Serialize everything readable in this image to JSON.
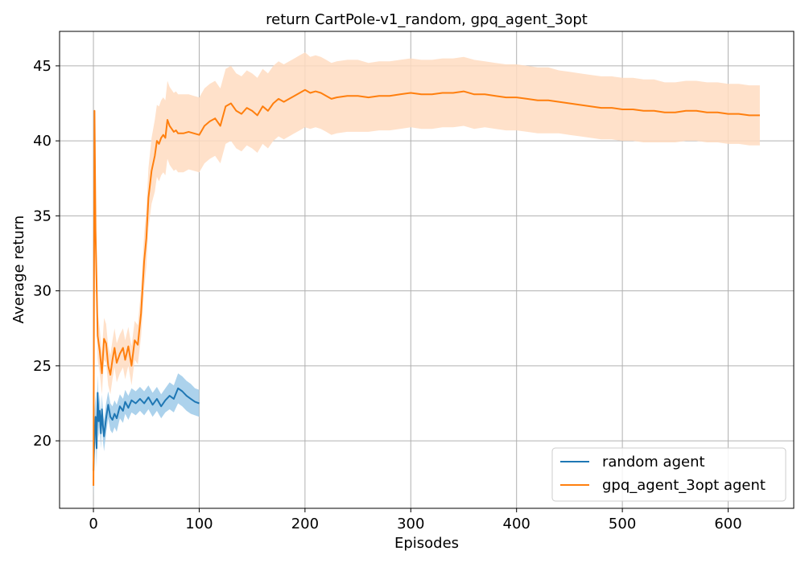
{
  "chart_data": {
    "type": "line",
    "title": "return CartPole-v1_random, gpq_agent_3opt",
    "xlabel": "Episodes",
    "ylabel": "Average return",
    "xlim": [
      -32,
      662
    ],
    "ylim": [
      15.5,
      47.3
    ],
    "xticks": [
      0,
      100,
      200,
      300,
      400,
      500,
      600
    ],
    "yticks": [
      20,
      25,
      30,
      35,
      40,
      45
    ],
    "grid": true,
    "legend_position": "lower-right",
    "series": [
      {
        "name": "random agent",
        "color": "#1f77b4",
        "band_color": "#9ecae9",
        "x": [
          0,
          1,
          2,
          3,
          4,
          5,
          6,
          7,
          8,
          9,
          10,
          12,
          14,
          16,
          18,
          20,
          22,
          25,
          28,
          30,
          33,
          36,
          40,
          44,
          48,
          52,
          56,
          60,
          64,
          68,
          72,
          76,
          80,
          84,
          88,
          92,
          96,
          100
        ],
        "y": [
          18.0,
          20.5,
          21.6,
          19.5,
          23.2,
          21.3,
          22.0,
          20.5,
          22.1,
          21.0,
          20.3,
          21.5,
          22.4,
          21.6,
          21.4,
          21.8,
          21.5,
          22.3,
          22.0,
          22.6,
          22.2,
          22.7,
          22.5,
          22.8,
          22.5,
          22.9,
          22.4,
          22.8,
          22.3,
          22.7,
          23.0,
          22.8,
          23.5,
          23.3,
          23.0,
          22.8,
          22.6,
          22.5
        ],
        "band": [
          1.7,
          1.5,
          1.5,
          1.3,
          1.2,
          1.1,
          1.1,
          1.0,
          1.0,
          1.0,
          1.0,
          1.0,
          0.9,
          0.9,
          0.9,
          0.9,
          0.9,
          0.8,
          0.8,
          0.8,
          0.8,
          0.8,
          0.8,
          0.8,
          0.8,
          0.8,
          0.8,
          0.8,
          0.8,
          0.8,
          0.9,
          0.9,
          1.0,
          1.0,
          1.0,
          1.0,
          0.9,
          0.9
        ]
      },
      {
        "name": "gpq_agent_3opt agent",
        "color": "#ff7f0e",
        "band_color": "#ffdcc1",
        "x": [
          0,
          1,
          2,
          4,
          6,
          8,
          10,
          12,
          14,
          16,
          18,
          20,
          22,
          25,
          28,
          30,
          33,
          36,
          39,
          42,
          45,
          48,
          50,
          52,
          55,
          58,
          60,
          62,
          64,
          66,
          68,
          70,
          72,
          74,
          76,
          78,
          80,
          85,
          90,
          95,
          100,
          105,
          110,
          115,
          120,
          125,
          130,
          135,
          140,
          145,
          150,
          155,
          160,
          165,
          170,
          175,
          180,
          185,
          190,
          195,
          200,
          205,
          210,
          215,
          220,
          225,
          230,
          240,
          250,
          260,
          270,
          280,
          290,
          300,
          310,
          320,
          330,
          340,
          350,
          360,
          370,
          380,
          390,
          400,
          410,
          420,
          430,
          440,
          450,
          460,
          470,
          480,
          490,
          500,
          510,
          520,
          530,
          540,
          550,
          560,
          570,
          580,
          590,
          600,
          610,
          620,
          630
        ],
        "y": [
          17.0,
          42.0,
          34.0,
          27.0,
          26.0,
          24.5,
          26.8,
          26.5,
          25.0,
          24.4,
          25.4,
          26.2,
          25.2,
          25.8,
          26.2,
          25.4,
          26.3,
          25.0,
          26.7,
          26.4,
          28.5,
          32.0,
          33.5,
          36.2,
          38.0,
          39.0,
          40.0,
          39.8,
          40.2,
          40.4,
          40.2,
          41.4,
          41.0,
          40.8,
          40.6,
          40.7,
          40.5,
          40.5,
          40.6,
          40.5,
          40.4,
          41.0,
          41.3,
          41.5,
          41.0,
          42.3,
          42.5,
          42.0,
          41.8,
          42.2,
          42.0,
          41.7,
          42.3,
          42.0,
          42.5,
          42.8,
          42.6,
          42.8,
          43.0,
          43.2,
          43.4,
          43.2,
          43.3,
          43.2,
          43.0,
          42.8,
          42.9,
          43.0,
          43.0,
          42.9,
          43.0,
          43.0,
          43.1,
          43.2,
          43.1,
          43.1,
          43.2,
          43.2,
          43.3,
          43.1,
          43.1,
          43.0,
          42.9,
          42.9,
          42.8,
          42.7,
          42.7,
          42.6,
          42.5,
          42.4,
          42.3,
          42.2,
          42.2,
          42.1,
          42.1,
          42.0,
          42.0,
          41.9,
          41.9,
          42.0,
          42.0,
          41.9,
          41.9,
          41.8,
          41.8,
          41.7,
          41.7
        ],
        "band": [
          0.3,
          0.4,
          2.5,
          1.6,
          1.5,
          1.4,
          1.4,
          1.3,
          1.3,
          1.3,
          1.3,
          1.3,
          1.3,
          1.3,
          1.3,
          1.3,
          1.3,
          1.3,
          1.3,
          1.3,
          1.6,
          1.8,
          1.9,
          2.0,
          2.2,
          2.4,
          2.4,
          2.5,
          2.5,
          2.5,
          2.5,
          2.6,
          2.6,
          2.6,
          2.6,
          2.6,
          2.6,
          2.6,
          2.5,
          2.5,
          2.5,
          2.5,
          2.5,
          2.5,
          2.5,
          2.5,
          2.5,
          2.5,
          2.5,
          2.5,
          2.5,
          2.5,
          2.5,
          2.5,
          2.5,
          2.5,
          2.5,
          2.5,
          2.5,
          2.5,
          2.5,
          2.4,
          2.4,
          2.4,
          2.4,
          2.4,
          2.4,
          2.4,
          2.4,
          2.3,
          2.3,
          2.3,
          2.3,
          2.3,
          2.3,
          2.3,
          2.3,
          2.3,
          2.3,
          2.3,
          2.2,
          2.2,
          2.2,
          2.2,
          2.2,
          2.2,
          2.2,
          2.1,
          2.1,
          2.1,
          2.1,
          2.1,
          2.1,
          2.1,
          2.1,
          2.1,
          2.1,
          2.0,
          2.0,
          2.0,
          2.0,
          2.0,
          2.0,
          2.0,
          2.0,
          2.0,
          2.0
        ]
      }
    ]
  }
}
